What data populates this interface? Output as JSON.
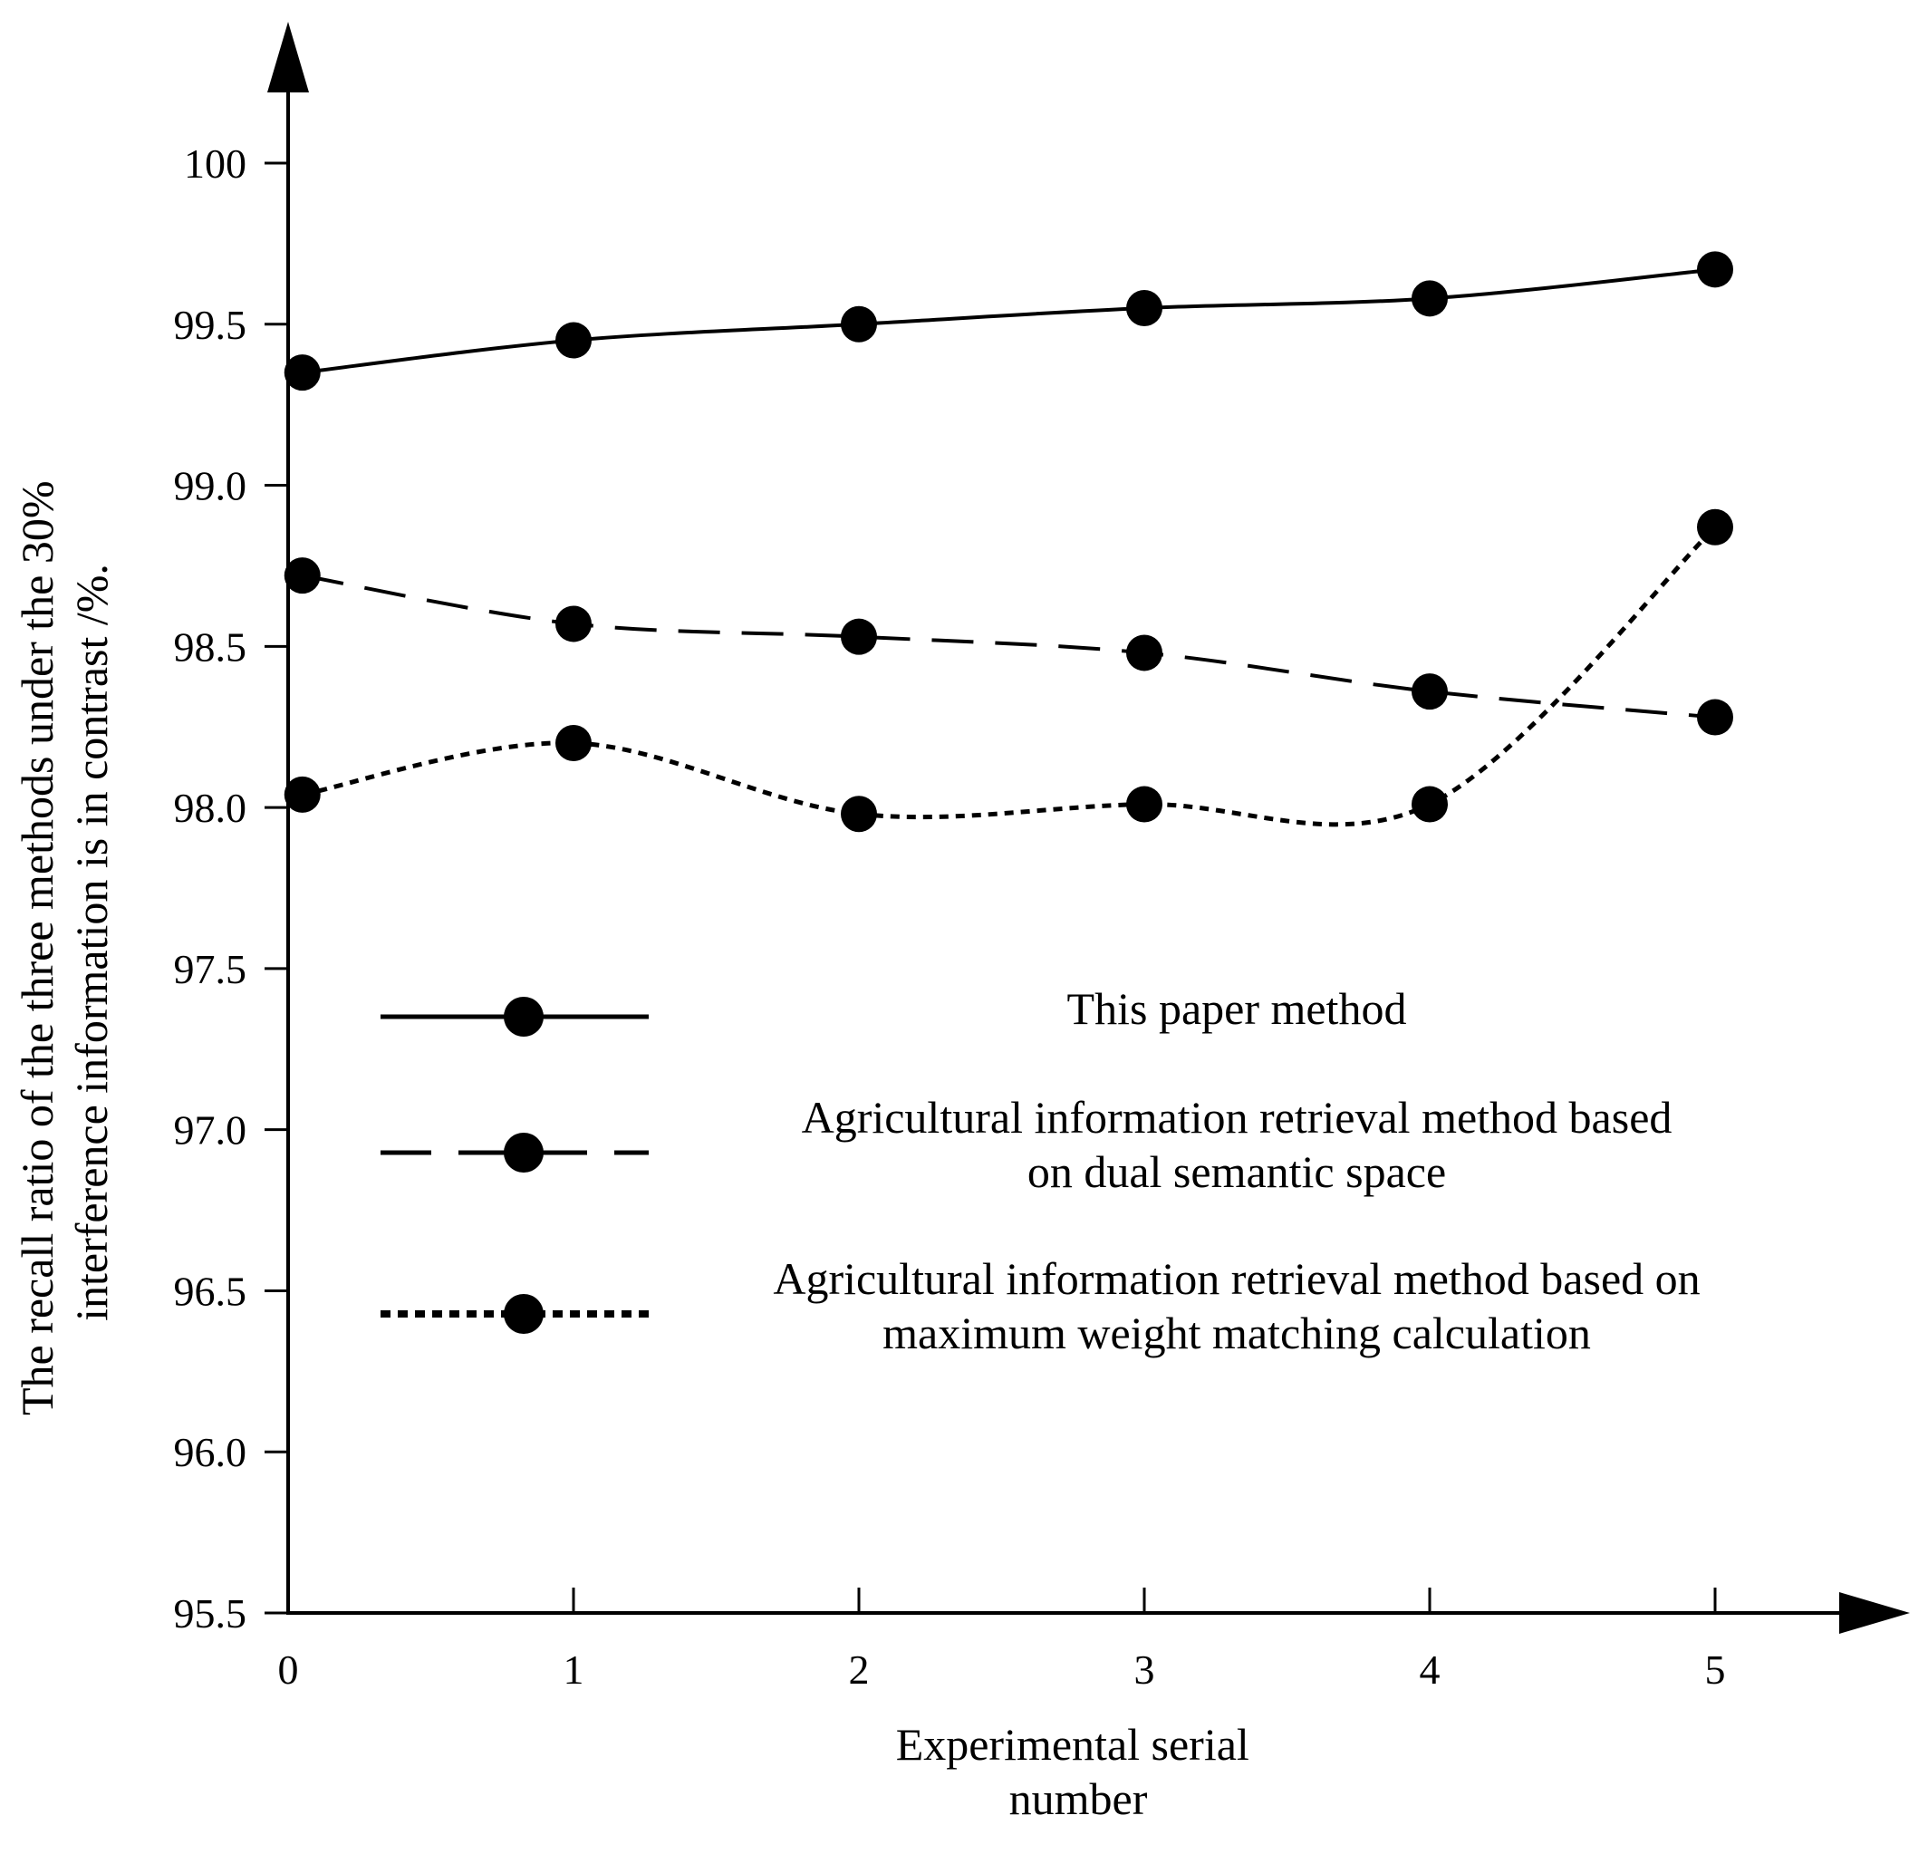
{
  "chart_data": {
    "type": "line",
    "title": "",
    "ylabel": "The recall ratio of the three methods under the 30% interference information is in contrast /%.",
    "ylabel_lines": [
      "The recall ratio of the three methods under the 30%",
      "interference information is in contrast /%."
    ],
    "xlabel": "Experimental serial number",
    "xlabel_lines": [
      "Experimental serial",
      "number"
    ],
    "x_ticks": [
      "0",
      "1",
      "2",
      "3",
      "4",
      "5"
    ],
    "y_ticks": [
      "95.5",
      "96.0",
      "96.5",
      "97.0",
      "97.5",
      "98.0",
      "98.5",
      "99.0",
      "99.5",
      "100"
    ],
    "ylim": [
      95.5,
      100.5
    ],
    "xlim": [
      0,
      5.6
    ],
    "grid": false,
    "legend_position": "center-left",
    "series": [
      {
        "name": "This paper method",
        "name_lines": [
          "This paper method"
        ],
        "style": "solid",
        "color": "#000000",
        "x": [
          0.05,
          1,
          2,
          3,
          4,
          5
        ],
        "values": [
          99.35,
          99.45,
          99.5,
          99.55,
          99.58,
          99.67
        ]
      },
      {
        "name": "Agricultural information retrieval method based on dual semantic space",
        "name_lines": [
          "Agricultural information retrieval method based",
          "on dual semantic space"
        ],
        "style": "dashed",
        "color": "#000000",
        "x": [
          0.05,
          1,
          2,
          3,
          4,
          5
        ],
        "values": [
          98.72,
          98.57,
          98.53,
          98.48,
          98.36,
          98.28
        ]
      },
      {
        "name": "Agricultural information retrieval method based on maximum weight matching calculation",
        "name_lines": [
          "Agricultural information retrieval method based on",
          "maximum weight matching calculation"
        ],
        "style": "dotted",
        "color": "#000000",
        "x": [
          0.05,
          1,
          2,
          3,
          4,
          5
        ],
        "values": [
          98.04,
          98.2,
          97.98,
          98.01,
          98.01,
          98.87
        ]
      }
    ]
  }
}
